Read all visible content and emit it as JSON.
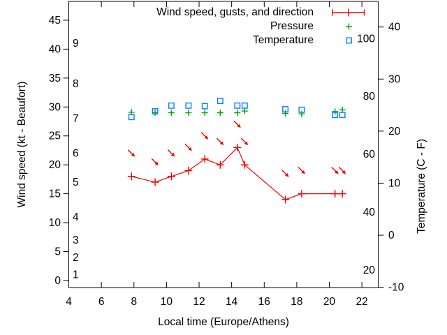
{
  "chart_data": {
    "type": "line",
    "title": "",
    "xlabel": "Local time (Europe/Athens)",
    "ylabel_left": "Wind speed (kt - Beaufort)",
    "ylabel_right": "Temperature (C - F)",
    "grid": false,
    "legend_position": "top-right-inside",
    "x_range_hours": [
      4,
      23
    ],
    "x_ticks": [
      4,
      6,
      8,
      10,
      12,
      14,
      16,
      18,
      20,
      22
    ],
    "y_left_kt_range": [
      -1.21,
      48.25
    ],
    "y_left_kt_ticks": [
      0,
      5,
      10,
      15,
      20,
      25,
      30,
      35,
      40,
      45
    ],
    "beaufort_labels": [
      {
        "bft": "1",
        "kt": 1
      },
      {
        "bft": "2",
        "kt": 4
      },
      {
        "bft": "3",
        "kt": 7
      },
      {
        "bft": "4",
        "kt": 11
      },
      {
        "bft": "5",
        "kt": 17
      },
      {
        "bft": "6",
        "kt": 22
      },
      {
        "bft": "7",
        "kt": 28
      },
      {
        "bft": "8",
        "kt": 34
      },
      {
        "bft": "9",
        "kt": 41
      }
    ],
    "y_right_c_range": [
      -10.05,
      44.92
    ],
    "y_right_c_ticks": [
      -10,
      0,
      10,
      20,
      30,
      40
    ],
    "fahrenheit_labels": [
      20,
      40,
      60,
      80,
      100
    ],
    "legend": [
      {
        "label": "Wind speed, gusts, and direction",
        "marker": "errorbar-line",
        "color": "#f00000"
      },
      {
        "label": "Pressure",
        "marker": "plus",
        "color": "#00a400"
      },
      {
        "label": "Temperature",
        "marker": "open-square",
        "color": "#0080ff"
      }
    ],
    "x_hours": [
      7.85,
      9.3,
      10.3,
      11.35,
      12.35,
      13.3,
      14.35,
      14.8,
      17.3,
      18.3,
      20.35,
      20.8
    ],
    "series": [
      {
        "name": "wind_speed_kt",
        "axis": "kt",
        "color": "#f00000",
        "style": "line-plus",
        "values": [
          18,
          17,
          18,
          19,
          21,
          20,
          23,
          20,
          14,
          15,
          15,
          15
        ]
      },
      {
        "name": "wind_gust_kt_with_direction_arrows",
        "axis": "kt",
        "color": "#f00000",
        "style": "arrow-down-right",
        "arrow_angle_deg": 45,
        "values": [
          22,
          20.5,
          22,
          23,
          25,
          24,
          27,
          24,
          18.5,
          19,
          19,
          19
        ]
      },
      {
        "name": "pressure_plotted_on_kt_axis",
        "axis": "kt",
        "color": "#00a400",
        "style": "plus",
        "values": [
          29.1,
          29.0,
          29.0,
          29.0,
          29.0,
          29.0,
          29.0,
          29.3,
          28.9,
          28.8,
          29.2,
          29.5
        ]
      },
      {
        "name": "temperature_c",
        "axis": "c",
        "color": "#0080ff",
        "style": "open-square",
        "values": [
          22.7,
          23.8,
          24.9,
          24.9,
          24.8,
          25.8,
          24.9,
          24.9,
          24.2,
          24.1,
          23.1,
          23.1
        ]
      }
    ]
  }
}
